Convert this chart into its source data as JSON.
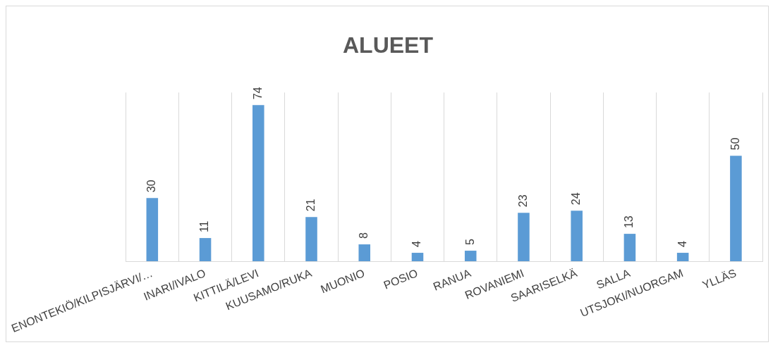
{
  "chart_data": {
    "type": "bar",
    "title": "ALUEET",
    "categories": [
      "ENONTEKIÖ/KILPISJÄRVI/…",
      "INARI/IVALO",
      "KITTILÄ/LEVI",
      "KUUSAMO/RUKA",
      "MUONIO",
      "POSIO",
      "RANUA",
      "ROVANIEMI",
      "SAARISELKÄ",
      "SALLA",
      "UTSJOKI/NUORGAM",
      "YLLÄS"
    ],
    "values": [
      30,
      11,
      74,
      21,
      8,
      4,
      5,
      23,
      24,
      13,
      4,
      50
    ],
    "color": "#5b9bd5",
    "data_labels": true,
    "grid": "x",
    "legend": false,
    "tick_labels": "x"
  }
}
